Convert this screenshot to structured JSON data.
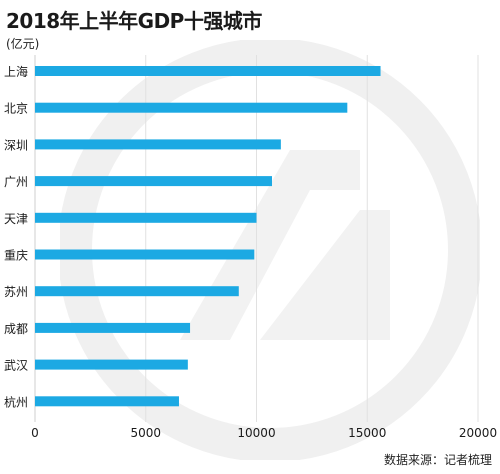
{
  "title": "2018年上半年GDP十强城市",
  "unit_label": "(亿元)",
  "source": "数据来源：记者梳理",
  "colors": {
    "bar": "#1ca9e3",
    "grid": "#e1e1e1",
    "watermark": "#f0f0f0"
  },
  "chart_data": {
    "type": "bar",
    "orientation": "horizontal",
    "categories": [
      "上海",
      "北京",
      "深圳",
      "广州",
      "天津",
      "重庆",
      "苏州",
      "成都",
      "武汉",
      "杭州"
    ],
    "values": [
      15600,
      14100,
      11100,
      10700,
      10000,
      9900,
      9200,
      7000,
      6900,
      6500
    ],
    "xlim": [
      0,
      20000
    ],
    "xticks": [
      0,
      5000,
      10000,
      15000,
      20000
    ],
    "grid": "vertical",
    "title": "2018年上半年GDP十强城市",
    "ylabel": "(亿元)"
  }
}
